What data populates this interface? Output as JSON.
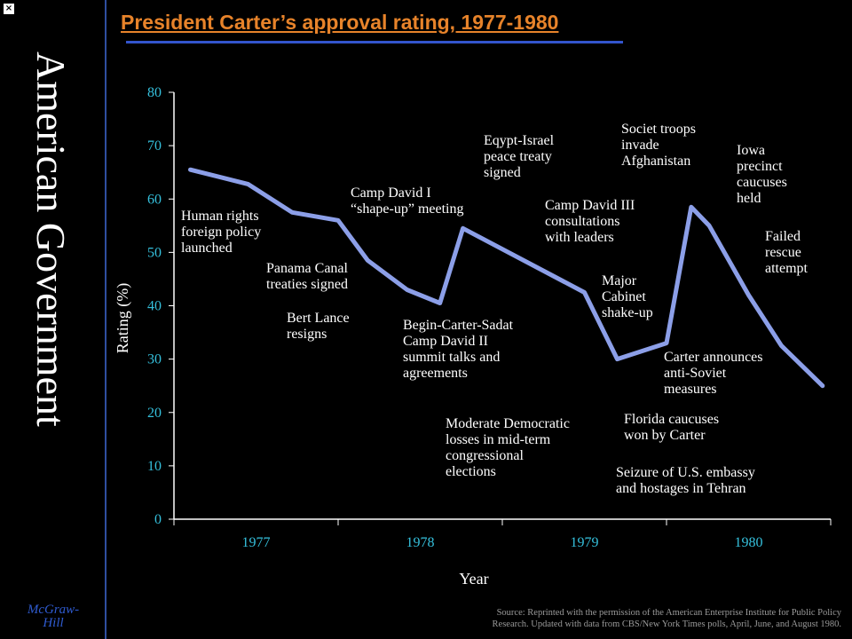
{
  "sidebar": {
    "vertical_title": "American Government",
    "publisher_line1": "McGraw-",
    "publisher_line2": "Hill",
    "close_glyph": "×"
  },
  "source_line1": "Source: Reprinted with the permission of the American Enterprise Institute for Public Policy",
  "source_line2": "Research. Updated with data from CBS/New York Times polls, April, June, and August 1980.",
  "colors": {
    "line": "#8c9fe8",
    "title": "#e7832a",
    "ticks": "#35c0dc",
    "rule": "#3355cc"
  },
  "chart_data": {
    "type": "line",
    "title": "President Carter’s approval rating, 1977-1980",
    "xlabel": "Year",
    "ylabel": "Rating (%)",
    "ylim": [
      0,
      80
    ],
    "yticks": [
      "0",
      "10",
      "20",
      "30",
      "40",
      "50",
      "60",
      "70",
      "80"
    ],
    "xlim": [
      1977.0,
      1981.0
    ],
    "xticks": [
      "1977",
      "1978",
      "1979",
      "1980"
    ],
    "grid": false,
    "series": [
      {
        "x": [
          1977.1,
          1977.45,
          1977.72,
          1978.0,
          1978.18,
          1978.42,
          1978.62,
          1978.76,
          1979.5,
          1979.7,
          1980.0,
          1980.15,
          1980.26,
          1980.5,
          1980.7,
          1980.95
        ],
        "y": [
          65.5,
          62.8,
          57.5,
          56,
          48.5,
          43,
          40.5,
          54.5,
          42.5,
          30,
          33,
          58.5,
          55,
          42,
          32.5,
          25
        ]
      }
    ],
    "annotations": [
      {
        "lines": [
          "Human rights",
          "foreign policy",
          "launched"
        ]
      },
      {
        "lines": [
          "Panama Canal",
          "treaties signed"
        ]
      },
      {
        "lines": [
          "Bert Lance",
          "resigns"
        ]
      },
      {
        "lines": [
          "Camp David I",
          "“shape-up” meeting"
        ]
      },
      {
        "lines": [
          "Begin-Carter-Sadat",
          "Camp David II",
          "summit talks and",
          "agreements"
        ]
      },
      {
        "lines": [
          "Eqypt-Israel",
          "peace treaty",
          "signed"
        ]
      },
      {
        "lines": [
          "Moderate Democratic",
          "losses in mid-term",
          "congressional",
          "elections"
        ]
      },
      {
        "lines": [
          "Camp David III",
          "consultations",
          "with leaders"
        ]
      },
      {
        "lines": [
          "Major",
          "Cabinet",
          "shake-up"
        ]
      },
      {
        "lines": [
          "Societ troops",
          "invade",
          "Afghanistan"
        ]
      },
      {
        "lines": [
          "Iowa",
          "precinct",
          "caucuses",
          "held"
        ]
      },
      {
        "lines": [
          "Failed",
          "rescue",
          "attempt"
        ]
      },
      {
        "lines": [
          "Carter announces",
          "anti-Soviet",
          "measures"
        ]
      },
      {
        "lines": [
          "Florida caucuses",
          "won by Carter"
        ]
      },
      {
        "lines": [
          "Seizure of U.S. embassy",
          "and hostages in Tehran"
        ]
      }
    ]
  }
}
